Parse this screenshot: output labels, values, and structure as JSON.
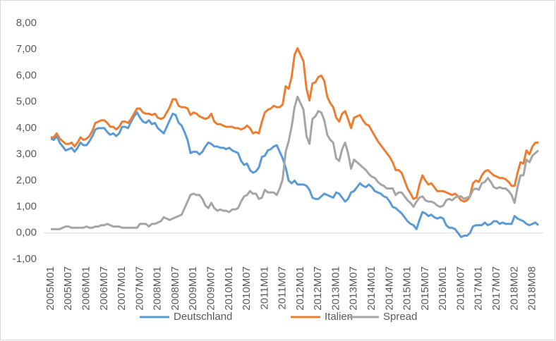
{
  "chart_data": {
    "type": "line",
    "categories": [
      "2005M01",
      null,
      null,
      null,
      null,
      null,
      "2005M07",
      null,
      null,
      null,
      null,
      null,
      "2006M01",
      null,
      null,
      null,
      null,
      null,
      "2006M07",
      null,
      null,
      null,
      null,
      null,
      "2007M01",
      null,
      null,
      null,
      null,
      null,
      "2007M07",
      null,
      null,
      null,
      null,
      null,
      "2008M01",
      null,
      null,
      null,
      null,
      null,
      "2008M07",
      null,
      null,
      null,
      null,
      null,
      "2009M01",
      null,
      null,
      null,
      null,
      null,
      "2009M07",
      null,
      null,
      null,
      null,
      null,
      "2010M01",
      null,
      null,
      null,
      null,
      null,
      "2010M07",
      null,
      null,
      null,
      null,
      null,
      "2011M01",
      null,
      null,
      null,
      null,
      null,
      "2011M07",
      null,
      null,
      null,
      null,
      null,
      "2012M01",
      null,
      null,
      null,
      null,
      null,
      "2012M07",
      null,
      null,
      null,
      null,
      null,
      "2013M01",
      null,
      null,
      null,
      null,
      null,
      "2013M07",
      null,
      null,
      null,
      null,
      null,
      "2014M01",
      null,
      null,
      null,
      null,
      null,
      "2014M07",
      null,
      null,
      null,
      null,
      null,
      "2015M01",
      null,
      null,
      null,
      null,
      null,
      "2015M07",
      null,
      null,
      null,
      null,
      null,
      "2016M01",
      null,
      null,
      null,
      null,
      null,
      "2016M07",
      null,
      null,
      null,
      null,
      null,
      "2017M01",
      null,
      null,
      null,
      null,
      null,
      "2017M07",
      null,
      null,
      null,
      null,
      null,
      "2018M02",
      null,
      null,
      null,
      null,
      null,
      "2018M08",
      null,
      null
    ],
    "series": [
      {
        "name": "Deutschland",
        "color": "#5b9bd5",
        "values": [
          3.6,
          3.55,
          3.7,
          3.45,
          3.3,
          3.15,
          3.2,
          3.25,
          3.1,
          3.25,
          3.45,
          3.35,
          3.35,
          3.5,
          3.7,
          3.95,
          4.0,
          4.0,
          4.0,
          3.85,
          3.75,
          3.8,
          3.7,
          3.8,
          4.05,
          4.05,
          4.0,
          4.25,
          4.45,
          4.6,
          4.4,
          4.25,
          4.2,
          4.3,
          4.15,
          4.2,
          4.0,
          3.9,
          3.8,
          4.05,
          4.3,
          4.55,
          4.5,
          4.2,
          4.1,
          3.85,
          3.55,
          3.05,
          3.1,
          3.1,
          3.0,
          3.1,
          3.3,
          3.45,
          3.4,
          3.3,
          3.3,
          3.25,
          3.25,
          3.2,
          3.25,
          3.15,
          3.1,
          3.05,
          2.75,
          2.6,
          2.65,
          2.4,
          2.3,
          2.35,
          2.5,
          2.9,
          2.95,
          3.15,
          3.2,
          3.3,
          3.35,
          3.1,
          2.85,
          2.5,
          2.0,
          1.9,
          2.0,
          1.85,
          1.85,
          1.85,
          1.8,
          1.65,
          1.35,
          1.3,
          1.3,
          1.4,
          1.5,
          1.45,
          1.4,
          1.35,
          1.55,
          1.5,
          1.35,
          1.2,
          1.3,
          1.55,
          1.6,
          1.75,
          1.9,
          1.8,
          1.75,
          1.85,
          1.75,
          1.6,
          1.55,
          1.5,
          1.4,
          1.35,
          1.2,
          1.0,
          0.95,
          0.85,
          0.75,
          0.6,
          0.45,
          0.35,
          0.3,
          0.15,
          0.5,
          0.8,
          0.75,
          0.65,
          0.7,
          0.6,
          0.55,
          0.6,
          0.55,
          0.3,
          0.2,
          0.2,
          0.15,
          0.0,
          -0.15,
          -0.1,
          -0.1,
          0.0,
          0.25,
          0.3,
          0.3,
          0.3,
          0.4,
          0.3,
          0.35,
          0.45,
          0.45,
          0.35,
          0.4,
          0.35,
          0.35,
          0.35,
          0.65,
          0.55,
          0.5,
          0.45,
          0.35,
          0.3,
          0.35,
          0.4,
          0.3
        ]
      },
      {
        "name": "Italien",
        "color": "#ed7d31",
        "values": [
          3.65,
          3.65,
          3.8,
          3.6,
          3.5,
          3.4,
          3.4,
          3.45,
          3.3,
          3.45,
          3.65,
          3.55,
          3.6,
          3.7,
          3.9,
          4.2,
          4.25,
          4.3,
          4.3,
          4.2,
          4.05,
          4.05,
          3.95,
          4.05,
          4.25,
          4.25,
          4.2,
          4.35,
          4.55,
          4.75,
          4.75,
          4.6,
          4.55,
          4.55,
          4.5,
          4.55,
          4.4,
          4.35,
          4.4,
          4.6,
          4.8,
          5.1,
          5.1,
          4.85,
          4.8,
          4.8,
          4.75,
          4.5,
          4.6,
          4.55,
          4.45,
          4.4,
          4.35,
          4.4,
          4.55,
          4.25,
          4.15,
          4.15,
          4.1,
          4.05,
          4.05,
          4.05,
          4.0,
          4.0,
          3.95,
          4.0,
          4.1,
          4.0,
          3.8,
          3.85,
          3.8,
          4.25,
          4.6,
          4.7,
          4.75,
          4.85,
          4.8,
          4.8,
          4.9,
          5.6,
          5.5,
          5.95,
          6.8,
          7.05,
          6.8,
          6.55,
          5.5,
          5.05,
          5.7,
          5.75,
          5.95,
          6.0,
          5.8,
          5.2,
          4.95,
          4.8,
          4.4,
          4.25,
          4.55,
          4.65,
          4.35,
          4.0,
          4.4,
          4.45,
          4.5,
          4.3,
          4.15,
          4.1,
          3.9,
          3.7,
          3.5,
          3.35,
          3.2,
          3.05,
          2.9,
          2.7,
          2.4,
          2.4,
          2.3,
          2.0,
          1.7,
          1.5,
          1.3,
          1.35,
          1.85,
          2.2,
          2.0,
          1.85,
          1.9,
          1.75,
          1.6,
          1.6,
          1.6,
          1.55,
          1.5,
          1.45,
          1.5,
          1.4,
          1.25,
          1.2,
          1.25,
          1.4,
          1.9,
          2.0,
          1.95,
          2.2,
          2.35,
          2.4,
          2.3,
          2.2,
          2.15,
          2.1,
          2.1,
          2.05,
          1.95,
          1.8,
          1.8,
          2.3,
          2.7,
          2.65,
          3.15,
          3.0,
          3.3,
          3.45,
          3.45
        ]
      },
      {
        "name": "Spread",
        "color": "#a5a5a5",
        "values": [
          0.15,
          0.15,
          0.15,
          0.15,
          0.2,
          0.25,
          0.25,
          0.2,
          0.2,
          0.2,
          0.2,
          0.2,
          0.25,
          0.2,
          0.2,
          0.25,
          0.25,
          0.3,
          0.3,
          0.35,
          0.3,
          0.25,
          0.25,
          0.25,
          0.2,
          0.2,
          0.2,
          0.2,
          0.2,
          0.2,
          0.35,
          0.35,
          0.35,
          0.25,
          0.35,
          0.35,
          0.4,
          0.45,
          0.6,
          0.55,
          0.5,
          0.55,
          0.6,
          0.65,
          0.7,
          0.95,
          1.2,
          1.45,
          1.5,
          1.45,
          1.45,
          1.3,
          1.05,
          0.95,
          1.15,
          0.95,
          0.85,
          0.9,
          0.85,
          0.85,
          0.8,
          0.9,
          0.9,
          0.95,
          1.2,
          1.4,
          1.45,
          1.6,
          1.5,
          1.5,
          1.3,
          1.35,
          1.65,
          1.55,
          1.55,
          1.55,
          1.45,
          1.7,
          2.05,
          3.1,
          3.5,
          4.05,
          4.8,
          5.2,
          4.95,
          4.7,
          3.7,
          3.4,
          4.35,
          4.45,
          4.65,
          4.6,
          4.3,
          3.75,
          3.55,
          3.45,
          2.85,
          2.75,
          3.2,
          3.45,
          3.05,
          2.45,
          2.8,
          2.7,
          2.6,
          2.5,
          2.4,
          2.25,
          2.15,
          2.1,
          1.95,
          1.85,
          1.8,
          1.7,
          1.7,
          1.7,
          1.45,
          1.55,
          1.55,
          1.4,
          1.25,
          1.15,
          1.0,
          1.2,
          1.35,
          1.4,
          1.25,
          1.2,
          1.2,
          1.15,
          1.05,
          1.0,
          1.05,
          1.25,
          1.3,
          1.25,
          1.35,
          1.4,
          1.4,
          1.3,
          1.35,
          1.4,
          1.65,
          1.7,
          1.65,
          1.9,
          1.95,
          2.1,
          1.95,
          1.75,
          1.7,
          1.75,
          1.7,
          1.7,
          1.6,
          1.45,
          1.15,
          1.75,
          2.2,
          2.2,
          2.8,
          2.7,
          2.95,
          3.05,
          3.15
        ]
      }
    ],
    "ylim": [
      -1,
      8
    ],
    "yticks": [
      {
        "value": -1,
        "label": "-1,00"
      },
      {
        "value": 0,
        "label": "0,00"
      },
      {
        "value": 1,
        "label": "1,00"
      },
      {
        "value": 2,
        "label": "2,00"
      },
      {
        "value": 3,
        "label": "3,00"
      },
      {
        "value": 4,
        "label": "4,00"
      },
      {
        "value": 5,
        "label": "5,00"
      },
      {
        "value": 6,
        "label": "6,00"
      },
      {
        "value": 7,
        "label": "7,00"
      },
      {
        "value": 8,
        "label": "8,00"
      }
    ],
    "grid": false,
    "legend": "bottom"
  }
}
